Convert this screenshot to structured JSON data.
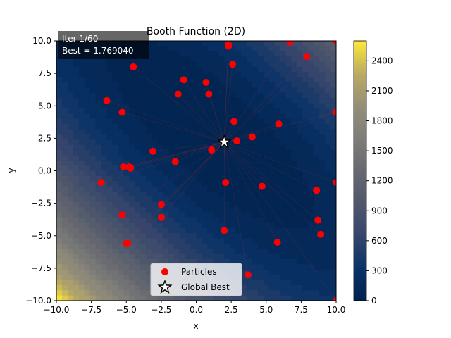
{
  "chart_data": {
    "type": "scatter",
    "title": "Booth Function (2D)",
    "xlabel": "x",
    "ylabel": "y",
    "xlim": [
      -10,
      10
    ],
    "ylim": [
      -10,
      10
    ],
    "xticks": [
      "−10.0",
      "−7.5",
      "−5.0",
      "−2.5",
      "0.0",
      "2.5",
      "5.0",
      "7.5",
      "10.0"
    ],
    "yticks": [
      "−10.0",
      "−7.5",
      "−5.0",
      "−2.5",
      "0.0",
      "2.5",
      "5.0",
      "7.5",
      "10.0"
    ],
    "grid": false,
    "background": {
      "type": "contour",
      "function": "Booth: (x + 2y − 7)^2 + (2x + y − 5)^2",
      "colormap": "cividis",
      "colorbar_ticks": [
        "0",
        "300",
        "600",
        "900",
        "1200",
        "1500",
        "1800",
        "2100",
        "2400"
      ],
      "colorbar_range": [
        0,
        2600
      ]
    },
    "annotation": {
      "lines": [
        "Iter 1/60",
        "Best = 1.769040"
      ],
      "placement": "top-left"
    },
    "legend": {
      "placement": "bottom-center",
      "entries": [
        {
          "label": "Particles",
          "marker": "red-circle"
        },
        {
          "label": "Global Best",
          "marker": "white-star"
        }
      ]
    },
    "series": [
      {
        "name": "Particles",
        "color": "#ff0000",
        "points": [
          [
            -4.5,
            8.0
          ],
          [
            -6.4,
            5.4
          ],
          [
            -5.3,
            4.5
          ],
          [
            -3.1,
            1.5
          ],
          [
            -1.5,
            0.7
          ],
          [
            -5.2,
            0.3
          ],
          [
            -4.8,
            0.3
          ],
          [
            -4.7,
            0.2
          ],
          [
            -6.8,
            -0.9
          ],
          [
            -2.5,
            -2.6
          ],
          [
            -5.3,
            -3.4
          ],
          [
            -2.5,
            -3.6
          ],
          [
            -5.0,
            -5.6
          ],
          [
            -4.9,
            -5.6
          ],
          [
            -1.3,
            5.9
          ],
          [
            -0.9,
            7.0
          ],
          [
            0.7,
            6.8
          ],
          [
            0.9,
            5.9
          ],
          [
            1.1,
            1.6
          ],
          [
            2.3,
            9.6
          ],
          [
            2.3,
            9.7
          ],
          [
            2.6,
            8.2
          ],
          [
            2.7,
            3.8
          ],
          [
            2.9,
            2.3
          ],
          [
            2.1,
            -0.9
          ],
          [
            2.0,
            -4.6
          ],
          [
            3.7,
            -8.0
          ],
          [
            4.0,
            2.6
          ],
          [
            4.7,
            -1.2
          ],
          [
            5.8,
            -5.5
          ],
          [
            5.9,
            3.6
          ],
          [
            6.7,
            9.9
          ],
          [
            7.9,
            8.8
          ],
          [
            8.6,
            -1.5
          ],
          [
            8.7,
            -3.8
          ],
          [
            8.9,
            -4.9
          ],
          [
            10.0,
            10.0
          ],
          [
            10.0,
            4.5
          ],
          [
            10.0,
            -0.9
          ],
          [
            10.0,
            -10.0
          ]
        ]
      },
      {
        "name": "Global Best",
        "color": "#ffffff",
        "points": [
          [
            2.0,
            2.2
          ]
        ]
      }
    ]
  }
}
